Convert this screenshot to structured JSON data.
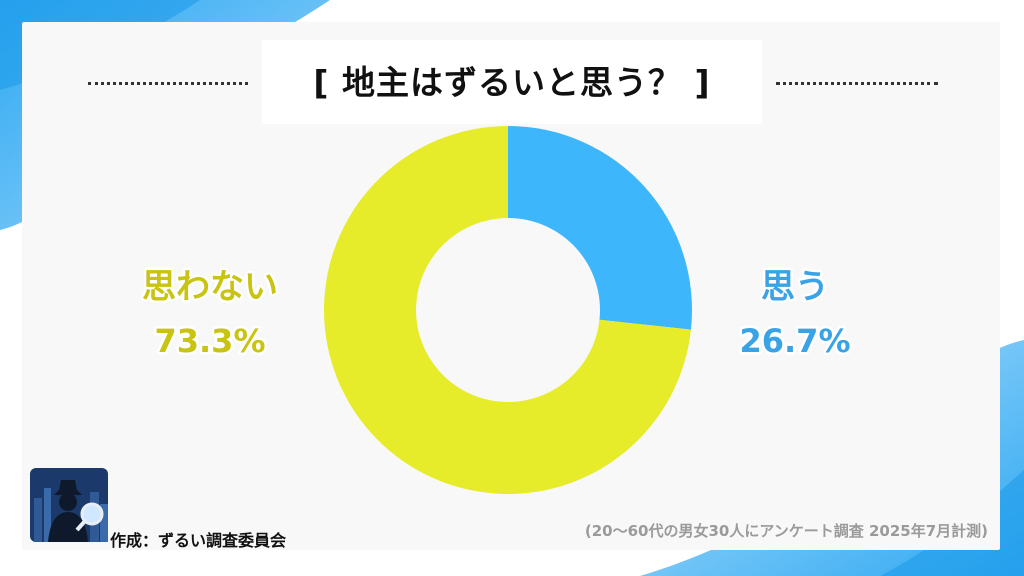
{
  "chart_data": {
    "type": "pie",
    "title": "[ 地主はずるいと思う？ ]",
    "slices": [
      {
        "label": "思う",
        "value": 26.7,
        "value_text": "26.7%",
        "color": "#3db6fb"
      },
      {
        "label": "思わない",
        "value": 73.3,
        "value_text": "73.3%",
        "color": "#e6ec2a"
      }
    ],
    "donut": true,
    "start": "top",
    "direction": "clockwise"
  },
  "credit": "作成：ずるい調査委員会",
  "source": "(20〜60代の男女30人にアンケート調査 2025年7月計測)",
  "colors": {
    "background_accent": "#3fb4f5",
    "card": "#f8f8f8",
    "label_yes": "#3aa3e6",
    "label_no": "#c9c411"
  },
  "icons": {
    "logo": "detective-magnifier-icon"
  }
}
